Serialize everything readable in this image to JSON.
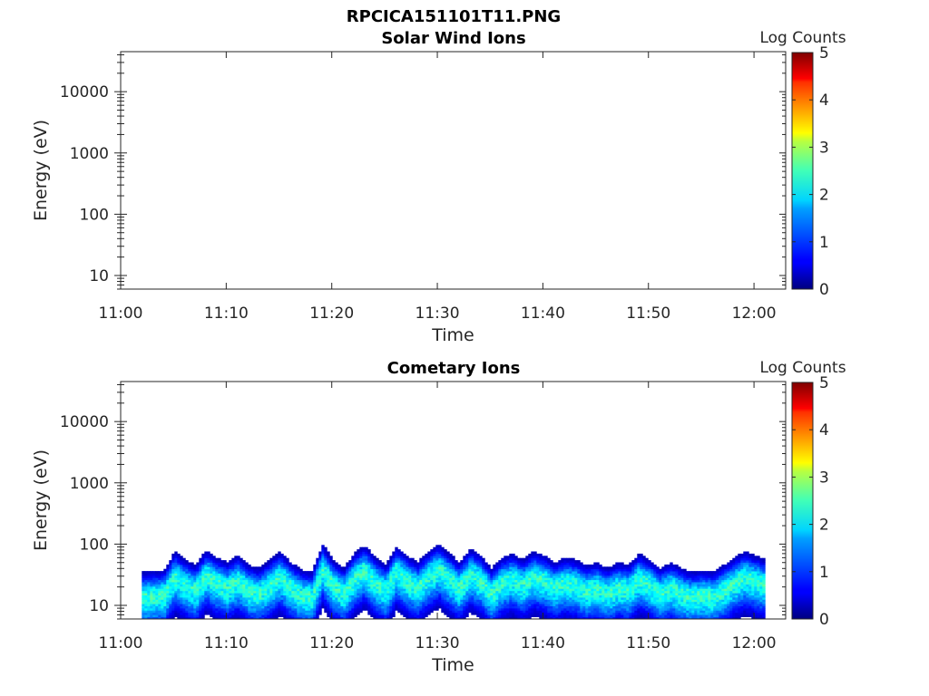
{
  "figure_title": "RPCICA151101T11.PNG",
  "chart_data": [
    {
      "type": "heatmap",
      "title": "Solar Wind Ions",
      "xlabel": "Time",
      "ylabel": "Energy (eV)",
      "x_ticks": [
        "11:00",
        "11:10",
        "11:20",
        "11:30",
        "11:40",
        "11:50",
        "12:00"
      ],
      "y_ticks": [
        10,
        100,
        1000,
        10000
      ],
      "y_scale": "log",
      "ylim": [
        6,
        45000
      ],
      "xlim": [
        "11:00",
        "12:03"
      ],
      "colorbar": {
        "label": "Log Counts",
        "ticks": [
          0,
          1,
          2,
          3,
          4,
          5
        ],
        "range": [
          0,
          5
        ],
        "colormap": "jet"
      },
      "grid": false,
      "data": "empty"
    },
    {
      "type": "heatmap",
      "title": "Cometary Ions",
      "xlabel": "Time",
      "ylabel": "Energy (eV)",
      "x_ticks": [
        "11:00",
        "11:10",
        "11:20",
        "11:30",
        "11:40",
        "11:50",
        "12:00"
      ],
      "y_ticks": [
        10,
        100,
        1000,
        10000
      ],
      "y_scale": "log",
      "ylim": [
        6,
        45000
      ],
      "xlim": [
        "11:00",
        "12:03"
      ],
      "colorbar": {
        "label": "Log Counts",
        "ticks": [
          0,
          1,
          2,
          3,
          4,
          5
        ],
        "range": [
          0,
          5
        ],
        "colormap": "jet"
      },
      "grid": false,
      "data_start": "11:02",
      "data_end": "12:01",
      "band_center_eV": [
        [
          "11:02",
          14
        ],
        [
          "11:04",
          15
        ],
        [
          "11:05",
          30
        ],
        [
          "11:06",
          22
        ],
        [
          "11:07",
          18
        ],
        [
          "11:08",
          32
        ],
        [
          "11:09",
          24
        ],
        [
          "11:10",
          20
        ],
        [
          "11:11",
          26
        ],
        [
          "11:12",
          18
        ],
        [
          "11:13",
          16
        ],
        [
          "11:14",
          22
        ],
        [
          "11:15",
          30
        ],
        [
          "11:16",
          20
        ],
        [
          "11:17",
          15
        ],
        [
          "11:18",
          14
        ],
        [
          "11:19",
          40
        ],
        [
          "11:20",
          22
        ],
        [
          "11:21",
          16
        ],
        [
          "11:22",
          28
        ],
        [
          "11:23",
          38
        ],
        [
          "11:24",
          24
        ],
        [
          "11:25",
          18
        ],
        [
          "11:26",
          36
        ],
        [
          "11:27",
          26
        ],
        [
          "11:28",
          20
        ],
        [
          "11:29",
          30
        ],
        [
          "11:30",
          40
        ],
        [
          "11:31",
          28
        ],
        [
          "11:32",
          20
        ],
        [
          "11:33",
          34
        ],
        [
          "11:34",
          26
        ],
        [
          "11:35",
          16
        ],
        [
          "11:36",
          24
        ],
        [
          "11:37",
          28
        ],
        [
          "11:38",
          22
        ],
        [
          "11:39",
          30
        ],
        [
          "11:40",
          26
        ],
        [
          "11:41",
          20
        ],
        [
          "11:42",
          24
        ],
        [
          "11:43",
          22
        ],
        [
          "11:44",
          18
        ],
        [
          "11:45",
          20
        ],
        [
          "11:46",
          16
        ],
        [
          "11:47",
          20
        ],
        [
          "11:48",
          18
        ],
        [
          "11:49",
          28
        ],
        [
          "11:50",
          22
        ],
        [
          "11:51",
          16
        ],
        [
          "11:52",
          20
        ],
        [
          "11:53",
          16
        ],
        [
          "11:54",
          14
        ],
        [
          "11:55",
          15
        ],
        [
          "11:56",
          14
        ],
        [
          "11:57",
          18
        ],
        [
          "11:58",
          24
        ],
        [
          "11:59",
          30
        ],
        [
          "12:00",
          26
        ],
        [
          "12:01",
          22
        ]
      ],
      "band_peak_log_counts": 2.3
    }
  ]
}
